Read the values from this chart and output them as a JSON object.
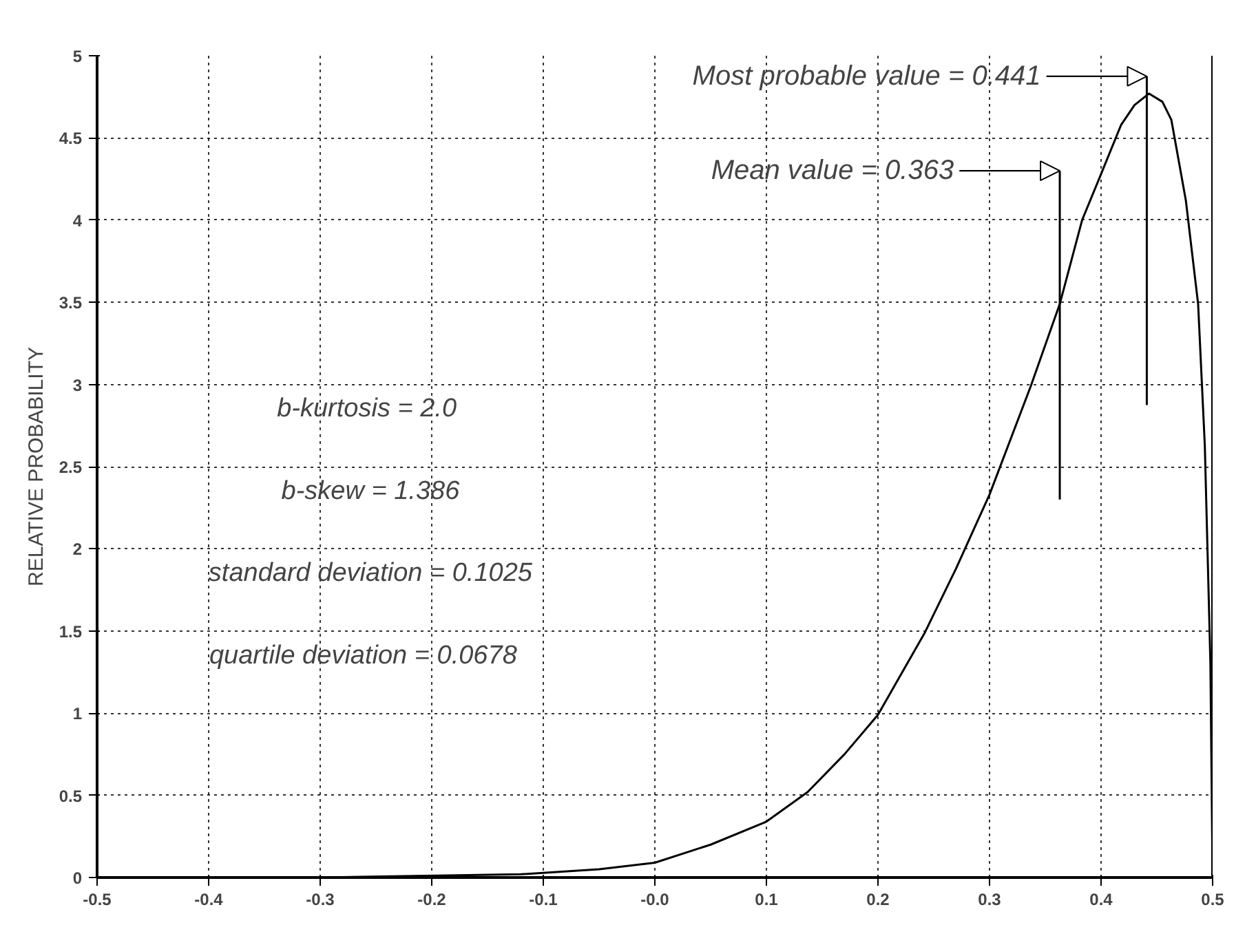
{
  "chart_data": {
    "type": "line",
    "ylabel": "RELATIVE PROBABILITY",
    "x": [
      -0.5,
      -0.3,
      -0.12,
      -0.05,
      0.0,
      0.05,
      0.1,
      0.137,
      0.17,
      0.2,
      0.242,
      0.27,
      0.3,
      0.337,
      0.363,
      0.383,
      0.4,
      0.418,
      0.43,
      0.443,
      0.455,
      0.463,
      0.476,
      0.487,
      0.493,
      0.498,
      0.5
    ],
    "series": [
      {
        "color": "#000000",
        "values": [
          0.0,
          0.0,
          0.02,
          0.05,
          0.09,
          0.2,
          0.34,
          0.52,
          0.75,
          0.99,
          1.49,
          1.88,
          2.33,
          2.99,
          3.49,
          4.0,
          4.28,
          4.58,
          4.7,
          4.77,
          4.72,
          4.61,
          4.12,
          3.49,
          2.63,
          1.31,
          0.0
        ]
      }
    ],
    "xlim": [
      -0.5,
      0.5
    ],
    "ylim": [
      0,
      5
    ],
    "xticks": [
      -0.5,
      -0.4,
      -0.3,
      -0.2,
      -0.1,
      {
        "value": 0,
        "label": "-0.0"
      },
      0.1,
      0.2,
      0.3,
      0.4,
      0.5
    ],
    "yticks": [
      0,
      0.5,
      1,
      1.5,
      2,
      2.5,
      3,
      3.5,
      4,
      4.5,
      5
    ],
    "grid": true,
    "line_style": "solid",
    "marker": "none",
    "ref_lines": [
      {
        "axis": "x",
        "value": 0.441,
        "label": "Most probable value = 0.441"
      },
      {
        "axis": "x",
        "value": 0.363,
        "label": "Mean value = 0.363"
      }
    ],
    "annotations": [
      "b-kurtosis  = 2.0",
      "b-skew = 1.386",
      "standard deviation = 0.1025",
      "quartile deviation  =  0.0678"
    ]
  }
}
